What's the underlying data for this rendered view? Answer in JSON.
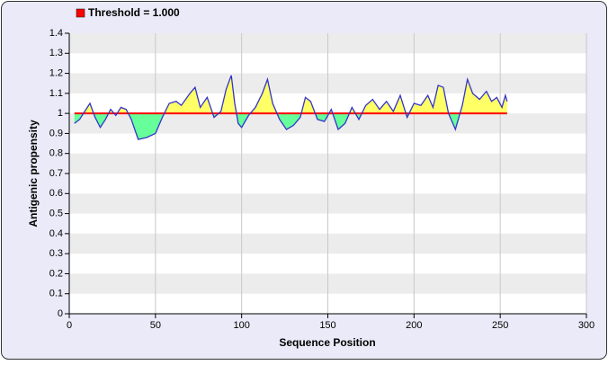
{
  "chart_data": {
    "type": "area-threshold",
    "xlabel": "Sequence Position",
    "ylabel": "Antigenic propensity",
    "threshold": {
      "name": "Threshold = 1.000",
      "value": 1,
      "color": "#ff0000"
    },
    "series": [
      {
        "name": "Antigenic propensity",
        "color": "#3333cc",
        "x": [
          3,
          6,
          9,
          12,
          15,
          18,
          21,
          24,
          27,
          30,
          33,
          36,
          40,
          45,
          50,
          54,
          58,
          62,
          65,
          70,
          73,
          76,
          80,
          84,
          88,
          91,
          94,
          96,
          98,
          100,
          104,
          108,
          112,
          115,
          118,
          122,
          126,
          130,
          134,
          137,
          140,
          144,
          148,
          152,
          156,
          160,
          164,
          168,
          172,
          176,
          180,
          184,
          188,
          192,
          196,
          200,
          204,
          208,
          211,
          214,
          217,
          220,
          224,
          228,
          231,
          234,
          238,
          242,
          245,
          248,
          251,
          253,
          254
        ],
        "values": [
          0.95,
          0.97,
          1.01,
          1.05,
          0.98,
          0.93,
          0.97,
          1.02,
          0.99,
          1.03,
          1.02,
          0.97,
          0.87,
          0.88,
          0.9,
          0.98,
          1.05,
          1.06,
          1.04,
          1.1,
          1.13,
          1.03,
          1.08,
          0.98,
          1.01,
          1.12,
          1.19,
          1.05,
          0.95,
          0.93,
          0.99,
          1.03,
          1.1,
          1.17,
          1.05,
          0.97,
          0.92,
          0.94,
          0.98,
          1.08,
          1.06,
          0.97,
          0.96,
          1.02,
          0.92,
          0.95,
          1.03,
          0.97,
          1.04,
          1.07,
          1.02,
          1.06,
          1.01,
          1.09,
          0.98,
          1.05,
          1.04,
          1.09,
          1.03,
          1.14,
          1.13,
          1.0,
          0.92,
          1.04,
          1.17,
          1.1,
          1.07,
          1.11,
          1.06,
          1.08,
          1.03,
          1.09,
          1.06
        ]
      }
    ],
    "above_color": "#ffff66",
    "below_color": "#66ff99",
    "xlim": [
      0,
      300
    ],
    "xticks": [
      0,
      50,
      100,
      150,
      200,
      250,
      300
    ],
    "ylim": [
      0,
      1.4
    ],
    "yticks": [
      0,
      0.1,
      0.2,
      0.3,
      0.4,
      0.5,
      0.6,
      0.7,
      0.8,
      0.9,
      1,
      1.1,
      1.2,
      1.3,
      1.4
    ],
    "grid": true
  }
}
